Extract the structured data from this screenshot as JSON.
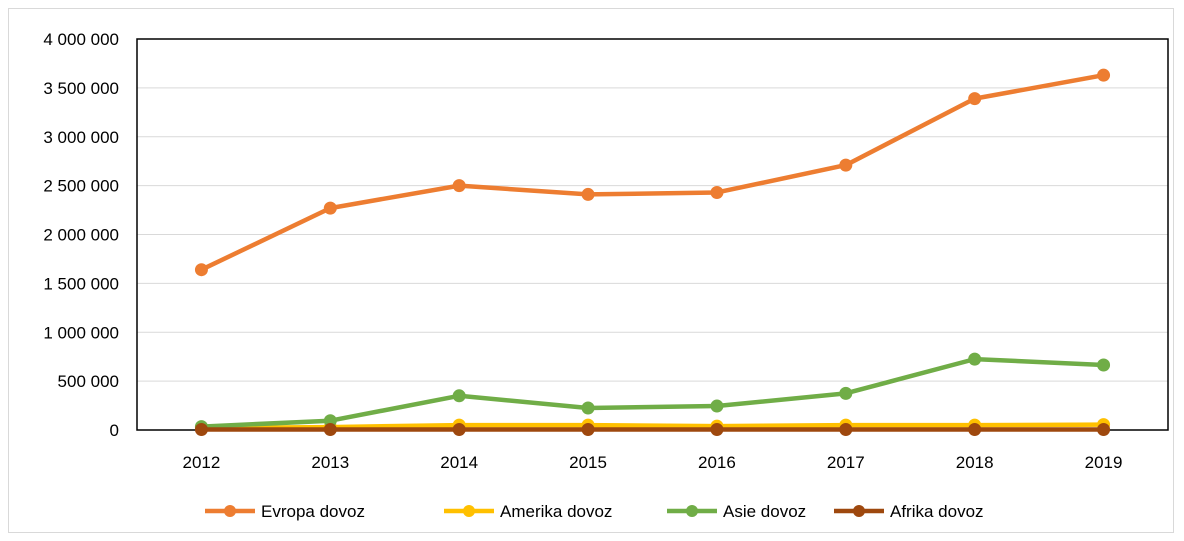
{
  "chart_data": {
    "type": "line",
    "title": "",
    "xlabel": "",
    "ylabel": "",
    "categories": [
      "2012",
      "2013",
      "2014",
      "2015",
      "2016",
      "2017",
      "2018",
      "2019"
    ],
    "ylim": [
      0,
      4000000
    ],
    "y_ticks": [
      0,
      500000,
      1000000,
      1500000,
      2000000,
      2500000,
      3000000,
      3500000,
      4000000
    ],
    "y_tick_labels": [
      "0",
      "500 000",
      "1 000 000",
      "1 500 000",
      "2 000 000",
      "2 500 000",
      "3 000 000",
      "3 500 000",
      "4 000 000"
    ],
    "grid": true,
    "legend_position": "bottom",
    "series": [
      {
        "name": "Evropa dovoz",
        "color": "#ed7d31",
        "values": [
          1640000,
          2270000,
          2500000,
          2410000,
          2430000,
          2710000,
          3390000,
          3630000
        ]
      },
      {
        "name": "Amerika dovoz",
        "color": "#ffc000",
        "values": [
          20000,
          30000,
          50000,
          50000,
          40000,
          50000,
          50000,
          55000
        ]
      },
      {
        "name": "Asie dovoz",
        "color": "#70ad47",
        "values": [
          35000,
          95000,
          350000,
          225000,
          245000,
          375000,
          725000,
          665000
        ]
      },
      {
        "name": "Afrika dovoz",
        "color": "#9e480e",
        "values": [
          5000,
          5000,
          5000,
          5000,
          5000,
          5000,
          5000,
          5000
        ]
      }
    ]
  }
}
